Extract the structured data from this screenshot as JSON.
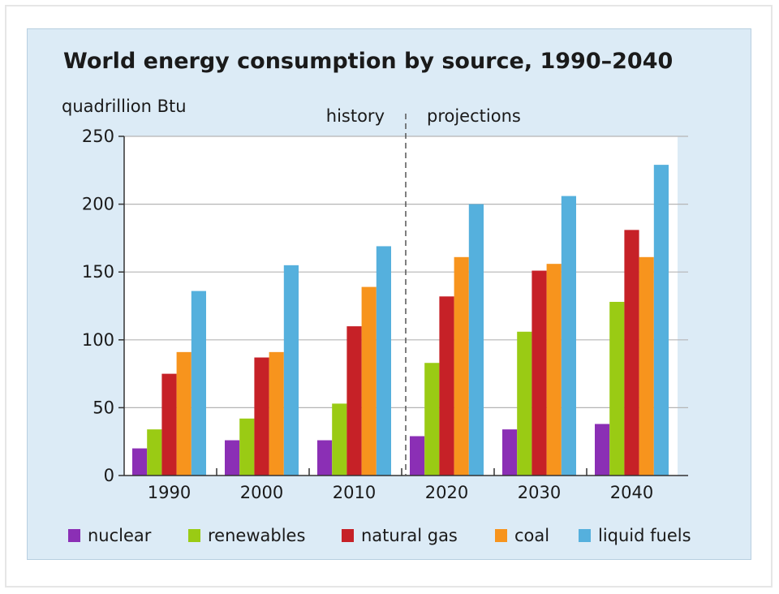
{
  "chart_data": {
    "type": "bar",
    "title": "World energy consumption by source, 1990–2040",
    "ylabel": "quadrillion Btu",
    "xlabel": "",
    "ylim": [
      0,
      250
    ],
    "yticks": [
      0,
      50,
      100,
      150,
      200,
      250
    ],
    "categories": [
      "1990",
      "2000",
      "2010",
      "2020",
      "2030",
      "2040"
    ],
    "section_labels": {
      "history": "history",
      "projections": "projections"
    },
    "series": [
      {
        "name": "nuclear",
        "color": "#8b2fb5",
        "values": [
          20,
          26,
          26,
          29,
          34,
          38
        ]
      },
      {
        "name": "renewables",
        "color": "#9acb14",
        "values": [
          34,
          42,
          53,
          83,
          106,
          128
        ]
      },
      {
        "name": "natural gas",
        "color": "#c62127",
        "values": [
          75,
          87,
          110,
          132,
          151,
          181
        ]
      },
      {
        "name": "coal",
        "color": "#f7941d",
        "values": [
          91,
          91,
          139,
          161,
          156,
          161
        ]
      },
      {
        "name": "liquid fuels",
        "color": "#55b0dd",
        "values": [
          136,
          155,
          169,
          200,
          206,
          229
        ]
      }
    ],
    "grid": "horizontal",
    "legend_position": "bottom"
  }
}
